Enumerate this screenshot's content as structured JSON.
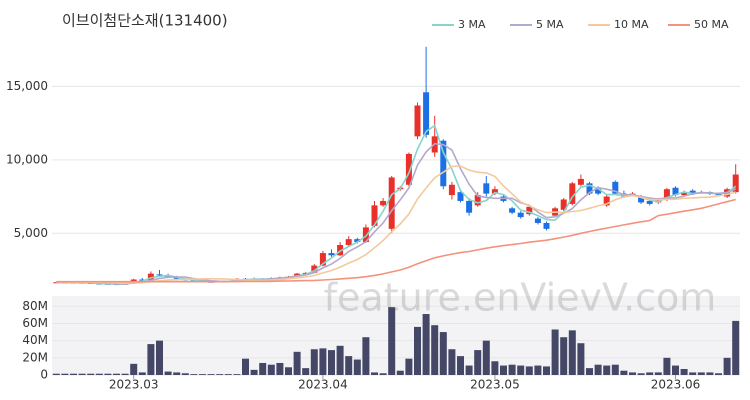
{
  "chart_data": [
    {
      "type": "candlestick",
      "title": "이브이첨단소재(131400)",
      "categories": [
        null,
        null,
        null,
        null,
        null,
        null,
        null,
        null,
        null,
        null,
        null,
        null,
        null,
        null,
        null,
        null,
        null,
        null,
        null,
        null,
        null,
        null,
        null,
        null,
        null,
        null,
        null,
        null,
        null,
        null,
        null,
        null,
        null,
        null,
        null,
        null,
        null,
        null,
        null,
        null,
        null,
        null,
        null,
        null,
        null,
        null,
        null,
        null,
        null,
        null,
        null,
        null,
        null,
        null,
        null,
        null,
        null,
        null,
        null,
        null,
        null,
        null,
        null,
        null,
        null,
        null,
        null,
        null,
        null,
        null,
        null,
        null,
        null,
        null,
        null,
        null,
        null,
        null,
        null,
        null
      ],
      "open": [
        1650,
        1660,
        1650,
        1640,
        1620,
        1580,
        1560,
        1540,
        1520,
        1580,
        1850,
        1800,
        2200,
        2150,
        2000,
        1900,
        1800,
        1720,
        1700,
        1690,
        1720,
        1750,
        1900,
        1850,
        1900,
        1870,
        1950,
        2000,
        2050,
        2250,
        2300,
        2800,
        3650,
        3500,
        4200,
        4600,
        4400,
        5500,
        6900,
        5300,
        8000,
        8300,
        11600,
        14600,
        10500,
        11300,
        7600,
        7800,
        7200,
        6900,
        8400,
        7700,
        7500,
        6700,
        6400,
        6300,
        6000,
        5700,
        6200,
        6600,
        7000,
        8300,
        8400,
        8100,
        6900,
        8500,
        7700,
        7600,
        7500,
        7200,
        7100,
        7300,
        8100,
        7600,
        7900,
        7700,
        7800,
        7700,
        7500,
        7800
      ],
      "high": [
        1700,
        1700,
        1690,
        1680,
        1650,
        1620,
        1600,
        1580,
        1600,
        1900,
        1950,
        2400,
        2500,
        2250,
        2100,
        1950,
        1850,
        1780,
        1750,
        1760,
        1780,
        1950,
        1950,
        1980,
        1950,
        2000,
        2050,
        2100,
        2300,
        2350,
        2900,
        3800,
        3900,
        4400,
        4800,
        4700,
        5600,
        7200,
        7400,
        8900,
        8200,
        10500,
        13900,
        17700,
        13000,
        11400,
        8500,
        8000,
        7400,
        7800,
        8900,
        8200,
        7600,
        6800,
        6500,
        6900,
        6100,
        5800,
        6800,
        7400,
        8500,
        9000,
        8500,
        8200,
        7600,
        8600,
        7900,
        7800,
        7600,
        7300,
        7400,
        8100,
        8200,
        7900,
        8000,
        7900,
        7850,
        7750,
        8100,
        9700
      ],
      "low": [
        1620,
        1630,
        1620,
        1600,
        1560,
        1540,
        1520,
        1500,
        1500,
        1570,
        1750,
        1780,
        2050,
        1950,
        1880,
        1780,
        1700,
        1680,
        1660,
        1670,
        1690,
        1740,
        1830,
        1820,
        1840,
        1850,
        1900,
        1980,
        2030,
        2200,
        2280,
        2750,
        3400,
        3450,
        4100,
        4300,
        4350,
        5400,
        6800,
        5000,
        7900,
        8200,
        11400,
        11500,
        10200,
        8000,
        7300,
        7100,
        6200,
        6800,
        7500,
        7600,
        7100,
        6300,
        6000,
        6200,
        5600,
        5200,
        6100,
        6500,
        6900,
        8200,
        7600,
        7600,
        6800,
        7600,
        7400,
        7500,
        7000,
        6900,
        7000,
        7200,
        7500,
        7500,
        7600,
        7700,
        7600,
        7500,
        7400,
        7700
      ],
      "close": [
        1660,
        1650,
        1640,
        1620,
        1580,
        1560,
        1540,
        1520,
        1560,
        1850,
        1800,
        2250,
        2150,
        2000,
        1900,
        1800,
        1720,
        1700,
        1690,
        1720,
        1750,
        1900,
        1850,
        1900,
        1870,
        1950,
        2000,
        2050,
        2250,
        2300,
        2800,
        3650,
        3500,
        4200,
        4600,
        4400,
        5400,
        6900,
        7200,
        8800,
        8100,
        10400,
        13700,
        11700,
        11600,
        8200,
        8300,
        7200,
        6400,
        7600,
        7700,
        8000,
        7200,
        6400,
        6100,
        6800,
        5700,
        5300,
        6700,
        7300,
        8400,
        8700,
        7700,
        7700,
        7500,
        7700,
        7500,
        7700,
        7100,
        7000,
        7300,
        8000,
        7600,
        7800,
        7700,
        7800,
        7700,
        7600,
        8000,
        9000
      ],
      "up_color": "#e8312a",
      "down_color": "#1d6fe6",
      "series": [
        {
          "name": "3 MA",
          "color": "#86d4cc",
          "values": [
            1650,
            1650,
            1650,
            1640,
            1610,
            1590,
            1560,
            1540,
            1540,
            1643,
            1737,
            1967,
            2067,
            2133,
            2017,
            1900,
            1807,
            1740,
            1703,
            1703,
            1720,
            1790,
            1833,
            1883,
            1873,
            1907,
            1940,
            2000,
            2100,
            2200,
            2450,
            2917,
            3317,
            3783,
            4100,
            4400,
            4800,
            5567,
            6500,
            7633,
            8033,
            9100,
            10733,
            11933,
            12333,
            10500,
            9367,
            7900,
            7300,
            7067,
            7233,
            7767,
            7633,
            7200,
            6567,
            6433,
            6200,
            5933,
            5900,
            6433,
            7467,
            8133,
            8267,
            8033,
            7633,
            7633,
            7567,
            7633,
            7433,
            7267,
            7133,
            7433,
            7633,
            7800,
            7700,
            7767,
            7733,
            7700,
            7767,
            8200
          ]
        },
        {
          "name": "5 MA",
          "color": "#b4a8cc",
          "values": [
            1660,
            1660,
            1650,
            1645,
            1630,
            1610,
            1588,
            1564,
            1556,
            1606,
            1654,
            1796,
            1922,
            2010,
            2020,
            2020,
            1914,
            1824,
            1762,
            1726,
            1716,
            1752,
            1782,
            1824,
            1854,
            1894,
            1914,
            1994,
            2074,
            2160,
            2320,
            2640,
            2900,
            3290,
            3750,
            4070,
            4420,
            5100,
            5700,
            6540,
            7280,
            8080,
            9640,
            10540,
            11100,
            11040,
            10660,
            9400,
            8340,
            7540,
            7440,
            7380,
            7380,
            7380,
            7080,
            6900,
            6440,
            6060,
            6120,
            6360,
            6680,
            7280,
            7760,
            8100,
            8000,
            7860,
            7620,
            7620,
            7500,
            7400,
            7320,
            7420,
            7400,
            7540,
            7680,
            7780,
            7720,
            7720,
            7760,
            8020
          ]
        },
        {
          "name": "10 MA",
          "color": "#f4c99c",
          "values": [
            1680,
            1675,
            1670,
            1665,
            1655,
            1645,
            1630,
            1615,
            1600,
            1630,
            1645,
            1705,
            1765,
            1810,
            1840,
            1865,
            1880,
            1895,
            1905,
            1890,
            1880,
            1845,
            1815,
            1805,
            1800,
            1815,
            1845,
            1900,
            1960,
            2020,
            2125,
            2300,
            2465,
            2695,
            2965,
            3210,
            3550,
            4015,
            4505,
            5105,
            5635,
            6310,
            7330,
            8080,
            8780,
            9160,
            9550,
            9580,
            9300,
            9150,
            9110,
            8870,
            8220,
            7690,
            7140,
            6860,
            6600,
            6410,
            6440,
            6410,
            6480,
            6550,
            6700,
            6860,
            7000,
            7290,
            7470,
            7570,
            7450,
            7300,
            7280,
            7310,
            7320,
            7390,
            7410,
            7440,
            7460,
            7550,
            7640,
            7810
          ]
        },
        {
          "name": "50 MA",
          "color": "#f4927c",
          "values": [
            1700,
            1700,
            1700,
            1700,
            1700,
            1700,
            1700,
            1700,
            1700,
            1700,
            1700,
            1700,
            1700,
            1700,
            1700,
            1700,
            1700,
            1700,
            1700,
            1700,
            1705,
            1710,
            1715,
            1720,
            1725,
            1730,
            1740,
            1750,
            1760,
            1775,
            1790,
            1820,
            1850,
            1890,
            1930,
            1975,
            2040,
            2130,
            2230,
            2370,
            2500,
            2680,
            2920,
            3130,
            3330,
            3460,
            3580,
            3680,
            3760,
            3870,
            3980,
            4080,
            4160,
            4230,
            4300,
            4390,
            4460,
            4530,
            4630,
            4740,
            4860,
            5000,
            5120,
            5240,
            5350,
            5460,
            5570,
            5680,
            5780,
            5870,
            6200,
            6300,
            6400,
            6500,
            6600,
            6700,
            6850,
            7000,
            7150,
            7300
          ]
        }
      ],
      "ylim": [
        1000,
        18500
      ],
      "yticks": [
        {
          "value": 5000,
          "label": "5,000"
        },
        {
          "value": 10000,
          "label": "10,000"
        },
        {
          "value": 15000,
          "label": "15,000"
        }
      ],
      "xticks": [
        {
          "value": 9,
          "label": "2023.03"
        },
        {
          "value": 31,
          "label": "2023.04"
        },
        {
          "value": 51,
          "label": "2023.05"
        },
        {
          "value": 72,
          "label": "2023.06"
        }
      ],
      "grid": true,
      "legend": "top-right"
    },
    {
      "type": "bar",
      "color": "#454767",
      "values": [
        1500000,
        1500000,
        1500000,
        1500000,
        1500000,
        1500000,
        1500000,
        1500000,
        1500000,
        13000000,
        3000000,
        36000000,
        40000000,
        4000000,
        3000000,
        2000000,
        1000000,
        1000000,
        1000000,
        1000000,
        1000000,
        1000000,
        19000000,
        6000000,
        14000000,
        12000000,
        14000000,
        9000000,
        27000000,
        8000000,
        30000000,
        31000000,
        29000000,
        34000000,
        22000000,
        18000000,
        44000000,
        3000000,
        2000000,
        79000000,
        5000000,
        19000000,
        56000000,
        71000000,
        58000000,
        50000000,
        30000000,
        22000000,
        11000000,
        29000000,
        40000000,
        16000000,
        11000000,
        12000000,
        11000000,
        10000000,
        11000000,
        10000000,
        53000000,
        44000000,
        52000000,
        37000000,
        8000000,
        12000000,
        11000000,
        12000000,
        5000000,
        3000000,
        2000000,
        3000000,
        3000000,
        20000000,
        11000000,
        7000000,
        3000000,
        3000000,
        3000000,
        2000000,
        20000000,
        63000000
      ],
      "ylim": [
        0,
        92000000
      ],
      "yticks": [
        0,
        {
          "value": 20000000,
          "label": "20M"
        },
        {
          "value": 40000000,
          "label": "40M"
        },
        {
          "value": 60000000,
          "label": "60M"
        },
        {
          "value": 80000000,
          "label": "80M"
        }
      ],
      "grid": true
    }
  ],
  "watermark": "feature.enVievV.com"
}
